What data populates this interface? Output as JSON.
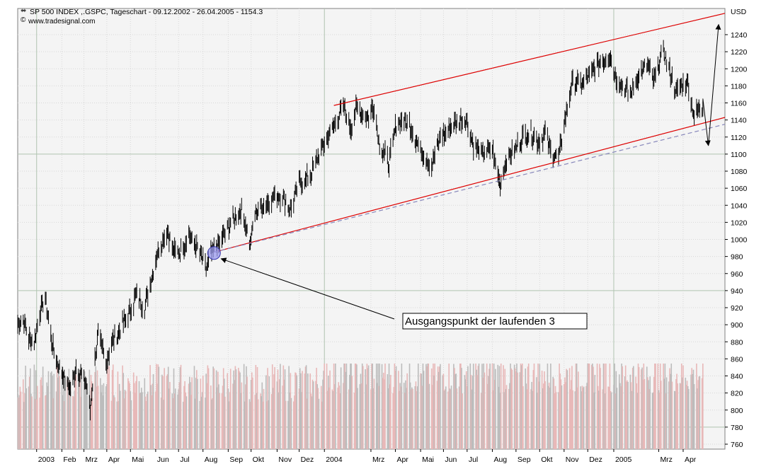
{
  "header": {
    "title": "SP 500 INDEX ,.GSPC, Tageschart - 09.12.2002 - 26.04.2005 - 1154.3",
    "source": "www.tradesignal.com",
    "unit": "USD"
  },
  "annotation": {
    "text": "Ausgangspunkt der laufenden 3"
  },
  "colors": {
    "price": "#000000",
    "channel": "#dd0000",
    "dashed": "#8888bb",
    "volume_up": "#e8b8b8",
    "volume_down": "#bcbcbc",
    "marker": "#9999ee",
    "plot_bg": "#f4f4f4"
  },
  "chart_data": {
    "type": "line",
    "title": "SP 500 INDEX ,.GSPC, Tageschart - 09.12.2002 - 26.04.2005 - 1154.3",
    "ylabel": "USD",
    "xlabel": "",
    "ylim": [
      750,
      1270
    ],
    "yticks": [
      760,
      780,
      800,
      820,
      840,
      860,
      880,
      900,
      920,
      940,
      960,
      980,
      1000,
      1020,
      1040,
      1060,
      1080,
      1100,
      1120,
      1140,
      1160,
      1180,
      1200,
      1220,
      1240
    ],
    "xticks": [
      {
        "label": "2003",
        "date": "2003-01-02"
      },
      {
        "label": "Feb",
        "date": "2003-02-03"
      },
      {
        "label": "Mrz",
        "date": "2003-03-03"
      },
      {
        "label": "Apr",
        "date": "2003-04-01"
      },
      {
        "label": "Mai",
        "date": "2003-05-01"
      },
      {
        "label": "Jun",
        "date": "2003-06-02"
      },
      {
        "label": "Jul",
        "date": "2003-07-01"
      },
      {
        "label": "Aug",
        "date": "2003-08-01"
      },
      {
        "label": "Sep",
        "date": "2003-09-02"
      },
      {
        "label": "Okt",
        "date": "2003-10-01"
      },
      {
        "label": "Nov",
        "date": "2003-11-03"
      },
      {
        "label": "Dez",
        "date": "2003-12-01"
      },
      {
        "label": "2004",
        "date": "2004-01-02"
      },
      {
        "label": "Mrz",
        "date": "2004-03-01"
      },
      {
        "label": "Apr",
        "date": "2004-04-01"
      },
      {
        "label": "Mai",
        "date": "2004-05-03"
      },
      {
        "label": "Jun",
        "date": "2004-06-01"
      },
      {
        "label": "Jul",
        "date": "2004-07-01"
      },
      {
        "label": "Aug",
        "date": "2004-08-02"
      },
      {
        "label": "Sep",
        "date": "2004-09-01"
      },
      {
        "label": "Okt",
        "date": "2004-10-01"
      },
      {
        "label": "Nov",
        "date": "2004-11-01"
      },
      {
        "label": "Dez",
        "date": "2004-12-01"
      },
      {
        "label": "2005",
        "date": "2005-01-03"
      },
      {
        "label": "Mrz",
        "date": "2005-03-01"
      },
      {
        "label": "Apr",
        "date": "2005-04-01"
      }
    ],
    "series": [
      {
        "values": [
          [
            "2002-12-09",
            900
          ],
          [
            "2002-12-16",
            905
          ],
          [
            "2002-12-23",
            885
          ],
          [
            "2002-12-30",
            880
          ],
          [
            "2003-01-06",
            915
          ],
          [
            "2003-01-13",
            932
          ],
          [
            "2003-01-17",
            905
          ],
          [
            "2003-01-24",
            868
          ],
          [
            "2003-01-31",
            850
          ],
          [
            "2003-02-07",
            835
          ],
          [
            "2003-02-14",
            823
          ],
          [
            "2003-02-21",
            850
          ],
          [
            "2003-02-28",
            842
          ],
          [
            "2003-03-07",
            828
          ],
          [
            "2003-03-11",
            800
          ],
          [
            "2003-03-17",
            860
          ],
          [
            "2003-03-21",
            890
          ],
          [
            "2003-03-31",
            855
          ],
          [
            "2003-04-08",
            880
          ],
          [
            "2003-04-17",
            893
          ],
          [
            "2003-04-30",
            915
          ],
          [
            "2003-05-09",
            935
          ],
          [
            "2003-05-19",
            920
          ],
          [
            "2003-05-30",
            965
          ],
          [
            "2003-06-06",
            990
          ],
          [
            "2003-06-17",
            1010
          ],
          [
            "2003-06-24",
            985
          ],
          [
            "2003-07-03",
            985
          ],
          [
            "2003-07-14",
            1005
          ],
          [
            "2003-07-25",
            990
          ],
          [
            "2003-08-05",
            965
          ],
          [
            "2003-08-12",
            985
          ],
          [
            "2003-08-22",
            995
          ],
          [
            "2003-09-05",
            1020
          ],
          [
            "2003-09-19",
            1035
          ],
          [
            "2003-09-30",
            995
          ],
          [
            "2003-10-06",
            1030
          ],
          [
            "2003-10-17",
            1040
          ],
          [
            "2003-10-31",
            1050
          ],
          [
            "2003-11-10",
            1050
          ],
          [
            "2003-11-20",
            1035
          ],
          [
            "2003-12-01",
            1065
          ],
          [
            "2003-12-15",
            1075
          ],
          [
            "2003-12-31",
            1110
          ],
          [
            "2004-01-09",
            1125
          ],
          [
            "2004-01-26",
            1155
          ],
          [
            "2004-02-05",
            1130
          ],
          [
            "2004-02-11",
            1155
          ],
          [
            "2004-02-25",
            1143
          ],
          [
            "2004-03-05",
            1155
          ],
          [
            "2004-03-12",
            1110
          ],
          [
            "2004-03-24",
            1090
          ],
          [
            "2004-04-01",
            1130
          ],
          [
            "2004-04-08",
            1140
          ],
          [
            "2004-04-19",
            1135
          ],
          [
            "2004-04-30",
            1110
          ],
          [
            "2004-05-07",
            1098
          ],
          [
            "2004-05-17",
            1085
          ],
          [
            "2004-05-28",
            1120
          ],
          [
            "2004-06-09",
            1130
          ],
          [
            "2004-06-23",
            1140
          ],
          [
            "2004-06-30",
            1140
          ],
          [
            "2004-07-09",
            1110
          ],
          [
            "2004-07-20",
            1100
          ],
          [
            "2004-08-02",
            1105
          ],
          [
            "2004-08-12",
            1065
          ],
          [
            "2004-08-20",
            1095
          ],
          [
            "2004-08-31",
            1105
          ],
          [
            "2004-09-10",
            1120
          ],
          [
            "2004-09-20",
            1125
          ],
          [
            "2004-09-30",
            1114
          ],
          [
            "2004-10-08",
            1125
          ],
          [
            "2004-10-14",
            1105
          ],
          [
            "2004-10-25",
            1095
          ],
          [
            "2004-11-03",
            1145
          ],
          [
            "2004-11-12",
            1185
          ],
          [
            "2004-11-24",
            1182
          ],
          [
            "2004-12-03",
            1192
          ],
          [
            "2004-12-14",
            1205
          ],
          [
            "2004-12-23",
            1210
          ],
          [
            "2004-12-30",
            1213
          ],
          [
            "2005-01-07",
            1187
          ],
          [
            "2005-01-14",
            1180
          ],
          [
            "2005-01-24",
            1170
          ],
          [
            "2005-02-02",
            1190
          ],
          [
            "2005-02-14",
            1205
          ],
          [
            "2005-02-23",
            1185
          ],
          [
            "2005-03-07",
            1222
          ],
          [
            "2005-03-14",
            1200
          ],
          [
            "2005-03-23",
            1172
          ],
          [
            "2005-03-31",
            1180
          ],
          [
            "2005-04-07",
            1185
          ],
          [
            "2005-04-15",
            1143
          ],
          [
            "2005-04-20",
            1150
          ],
          [
            "2005-04-26",
            1154
          ]
        ]
      }
    ],
    "channel_upper": [
      [
        "2004-01-14",
        1157
      ],
      [
        "2005-05-24",
        1265
      ]
    ],
    "channel_lower": [
      [
        "2003-08-15",
        985
      ],
      [
        "2005-05-24",
        1143
      ]
    ],
    "channel_dashed": [
      [
        "2003-08-15",
        985
      ],
      [
        "2005-05-24",
        1135
      ]
    ],
    "forecast_path": [
      [
        "2005-04-26",
        1165
      ],
      [
        "2005-05-03",
        1110
      ],
      [
        "2005-05-16",
        1252
      ]
    ],
    "marker": [
      "2003-08-15",
      984
    ],
    "volume_ylim": [
      0,
      100
    ],
    "volume": []
  }
}
